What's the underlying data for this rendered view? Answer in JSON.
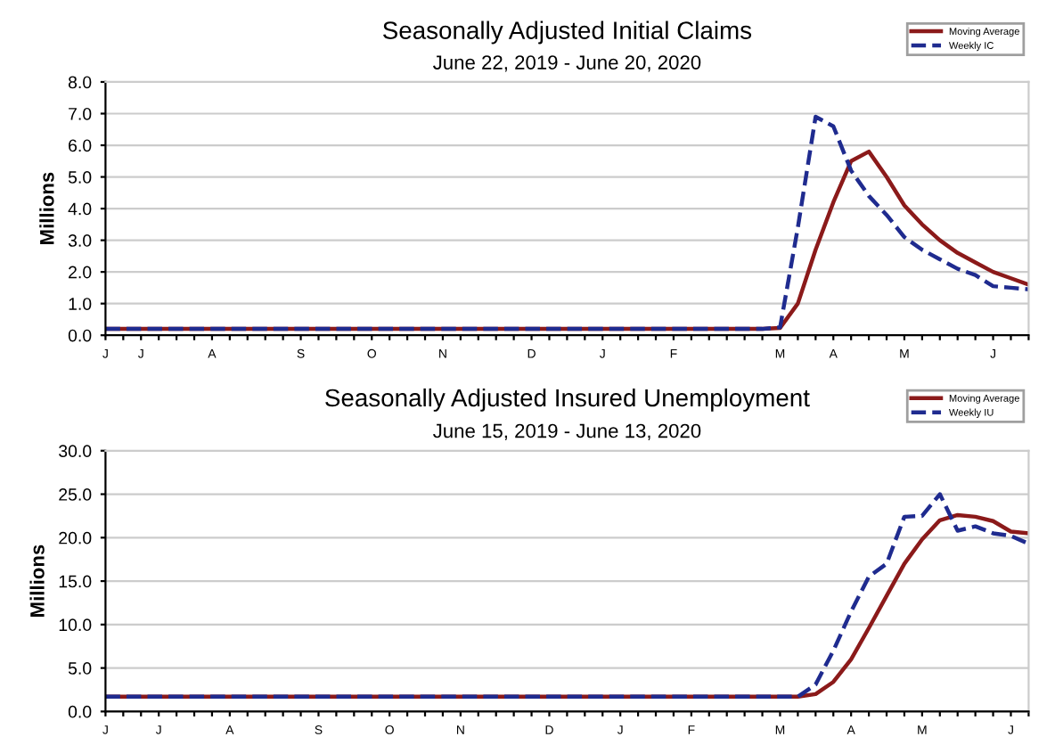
{
  "chart_data": [
    {
      "type": "line",
      "title": "Seasonally Adjusted Initial Claims",
      "subtitle": "June 22, 2019 - June 20, 2020",
      "ylabel": "Millions",
      "categories": [
        "J",
        null,
        "J",
        null,
        null,
        null,
        "A",
        null,
        null,
        null,
        null,
        "S",
        null,
        null,
        null,
        "O",
        null,
        null,
        null,
        "N",
        null,
        null,
        null,
        null,
        "D",
        null,
        null,
        null,
        "J",
        null,
        null,
        null,
        "F",
        null,
        null,
        null,
        null,
        null,
        "M",
        null,
        null,
        "A",
        null,
        null,
        null,
        "M",
        null,
        null,
        null,
        null,
        "J",
        null,
        null
      ],
      "ylim": [
        0,
        8
      ],
      "yticks": [
        {
          "value": 0,
          "label": "0.0"
        },
        {
          "value": 1,
          "label": "1.0"
        },
        {
          "value": 2,
          "label": "2.0"
        },
        {
          "value": 3,
          "label": "3.0"
        },
        {
          "value": 4,
          "label": "4.0"
        },
        {
          "value": 5,
          "label": "5.0"
        },
        {
          "value": 6,
          "label": "6.0"
        },
        {
          "value": 7,
          "label": "7.0"
        },
        {
          "value": 8,
          "label": "8.0"
        }
      ],
      "grid": "y",
      "legend": "top right",
      "series": [
        {
          "name": "Moving Average",
          "color": "#8b1a1a",
          "line_style": "solid",
          "values": [
            0.2,
            0.2,
            0.2,
            0.2,
            0.2,
            0.2,
            0.2,
            0.2,
            0.2,
            0.2,
            0.2,
            0.2,
            0.2,
            0.2,
            0.2,
            0.2,
            0.2,
            0.2,
            0.2,
            0.2,
            0.2,
            0.2,
            0.2,
            0.2,
            0.2,
            0.2,
            0.2,
            0.2,
            0.2,
            0.2,
            0.2,
            0.2,
            0.2,
            0.2,
            0.2,
            0.2,
            0.2,
            0.2,
            0.23,
            1.0,
            2.7,
            4.2,
            5.5,
            5.8,
            5.0,
            4.1,
            3.5,
            3.0,
            2.6,
            2.3,
            2.0,
            1.8,
            1.6
          ]
        },
        {
          "name": "Weekly IC",
          "color": "#1f2b8f",
          "line_style": "dashed",
          "values": [
            0.2,
            0.2,
            0.2,
            0.2,
            0.2,
            0.2,
            0.2,
            0.2,
            0.2,
            0.2,
            0.2,
            0.2,
            0.2,
            0.2,
            0.2,
            0.2,
            0.2,
            0.2,
            0.2,
            0.2,
            0.2,
            0.2,
            0.2,
            0.2,
            0.2,
            0.2,
            0.2,
            0.2,
            0.2,
            0.2,
            0.2,
            0.2,
            0.2,
            0.2,
            0.2,
            0.2,
            0.2,
            0.2,
            0.25,
            3.4,
            6.9,
            6.6,
            5.2,
            4.4,
            3.8,
            3.1,
            2.7,
            2.4,
            2.1,
            1.9,
            1.55,
            1.5,
            1.45
          ]
        }
      ]
    },
    {
      "type": "line",
      "title": "Seasonally Adjusted Insured Unemployment",
      "subtitle": "June 15, 2019 - June 13, 2020",
      "ylabel": "Millions",
      "categories": [
        "J",
        null,
        null,
        "J",
        null,
        null,
        null,
        "A",
        null,
        null,
        null,
        null,
        "S",
        null,
        null,
        null,
        "O",
        null,
        null,
        null,
        "N",
        null,
        null,
        null,
        null,
        "D",
        null,
        null,
        null,
        "J",
        null,
        null,
        null,
        "F",
        null,
        null,
        null,
        null,
        "M",
        null,
        null,
        null,
        "A",
        null,
        null,
        null,
        "M",
        null,
        null,
        null,
        null,
        "J",
        null
      ],
      "ylim": [
        0,
        30
      ],
      "yticks": [
        {
          "value": 0,
          "label": "0.0"
        },
        {
          "value": 5,
          "label": "5.0"
        },
        {
          "value": 10,
          "label": "10.0"
        },
        {
          "value": 15,
          "label": "15.0"
        },
        {
          "value": 20,
          "label": "20.0"
        },
        {
          "value": 25,
          "label": "25.0"
        },
        {
          "value": 30,
          "label": "30.0"
        }
      ],
      "grid": "y",
      "legend": "top right",
      "series": [
        {
          "name": "Moving Average",
          "color": "#8b1a1a",
          "line_style": "solid",
          "values": [
            1.7,
            1.7,
            1.7,
            1.7,
            1.7,
            1.7,
            1.7,
            1.7,
            1.7,
            1.7,
            1.7,
            1.7,
            1.7,
            1.7,
            1.7,
            1.7,
            1.7,
            1.7,
            1.7,
            1.7,
            1.7,
            1.7,
            1.7,
            1.7,
            1.7,
            1.7,
            1.7,
            1.7,
            1.7,
            1.7,
            1.7,
            1.7,
            1.7,
            1.7,
            1.7,
            1.7,
            1.7,
            1.7,
            1.7,
            1.7,
            2.0,
            3.4,
            6.0,
            9.6,
            13.3,
            17.0,
            19.8,
            22.0,
            22.6,
            22.4,
            21.9,
            20.7,
            20.5
          ]
        },
        {
          "name": "Weekly IU",
          "color": "#1f2b8f",
          "line_style": "dashed",
          "values": [
            1.7,
            1.7,
            1.7,
            1.7,
            1.7,
            1.7,
            1.7,
            1.7,
            1.7,
            1.7,
            1.7,
            1.7,
            1.7,
            1.7,
            1.7,
            1.7,
            1.7,
            1.7,
            1.7,
            1.7,
            1.7,
            1.7,
            1.7,
            1.7,
            1.7,
            1.7,
            1.7,
            1.7,
            1.7,
            1.7,
            1.7,
            1.7,
            1.7,
            1.7,
            1.7,
            1.7,
            1.7,
            1.7,
            1.7,
            1.7,
            3.1,
            7.0,
            11.5,
            15.5,
            17.0,
            22.4,
            22.5,
            25.0,
            20.8,
            21.3,
            20.5,
            20.2,
            19.3
          ]
        }
      ]
    }
  ]
}
